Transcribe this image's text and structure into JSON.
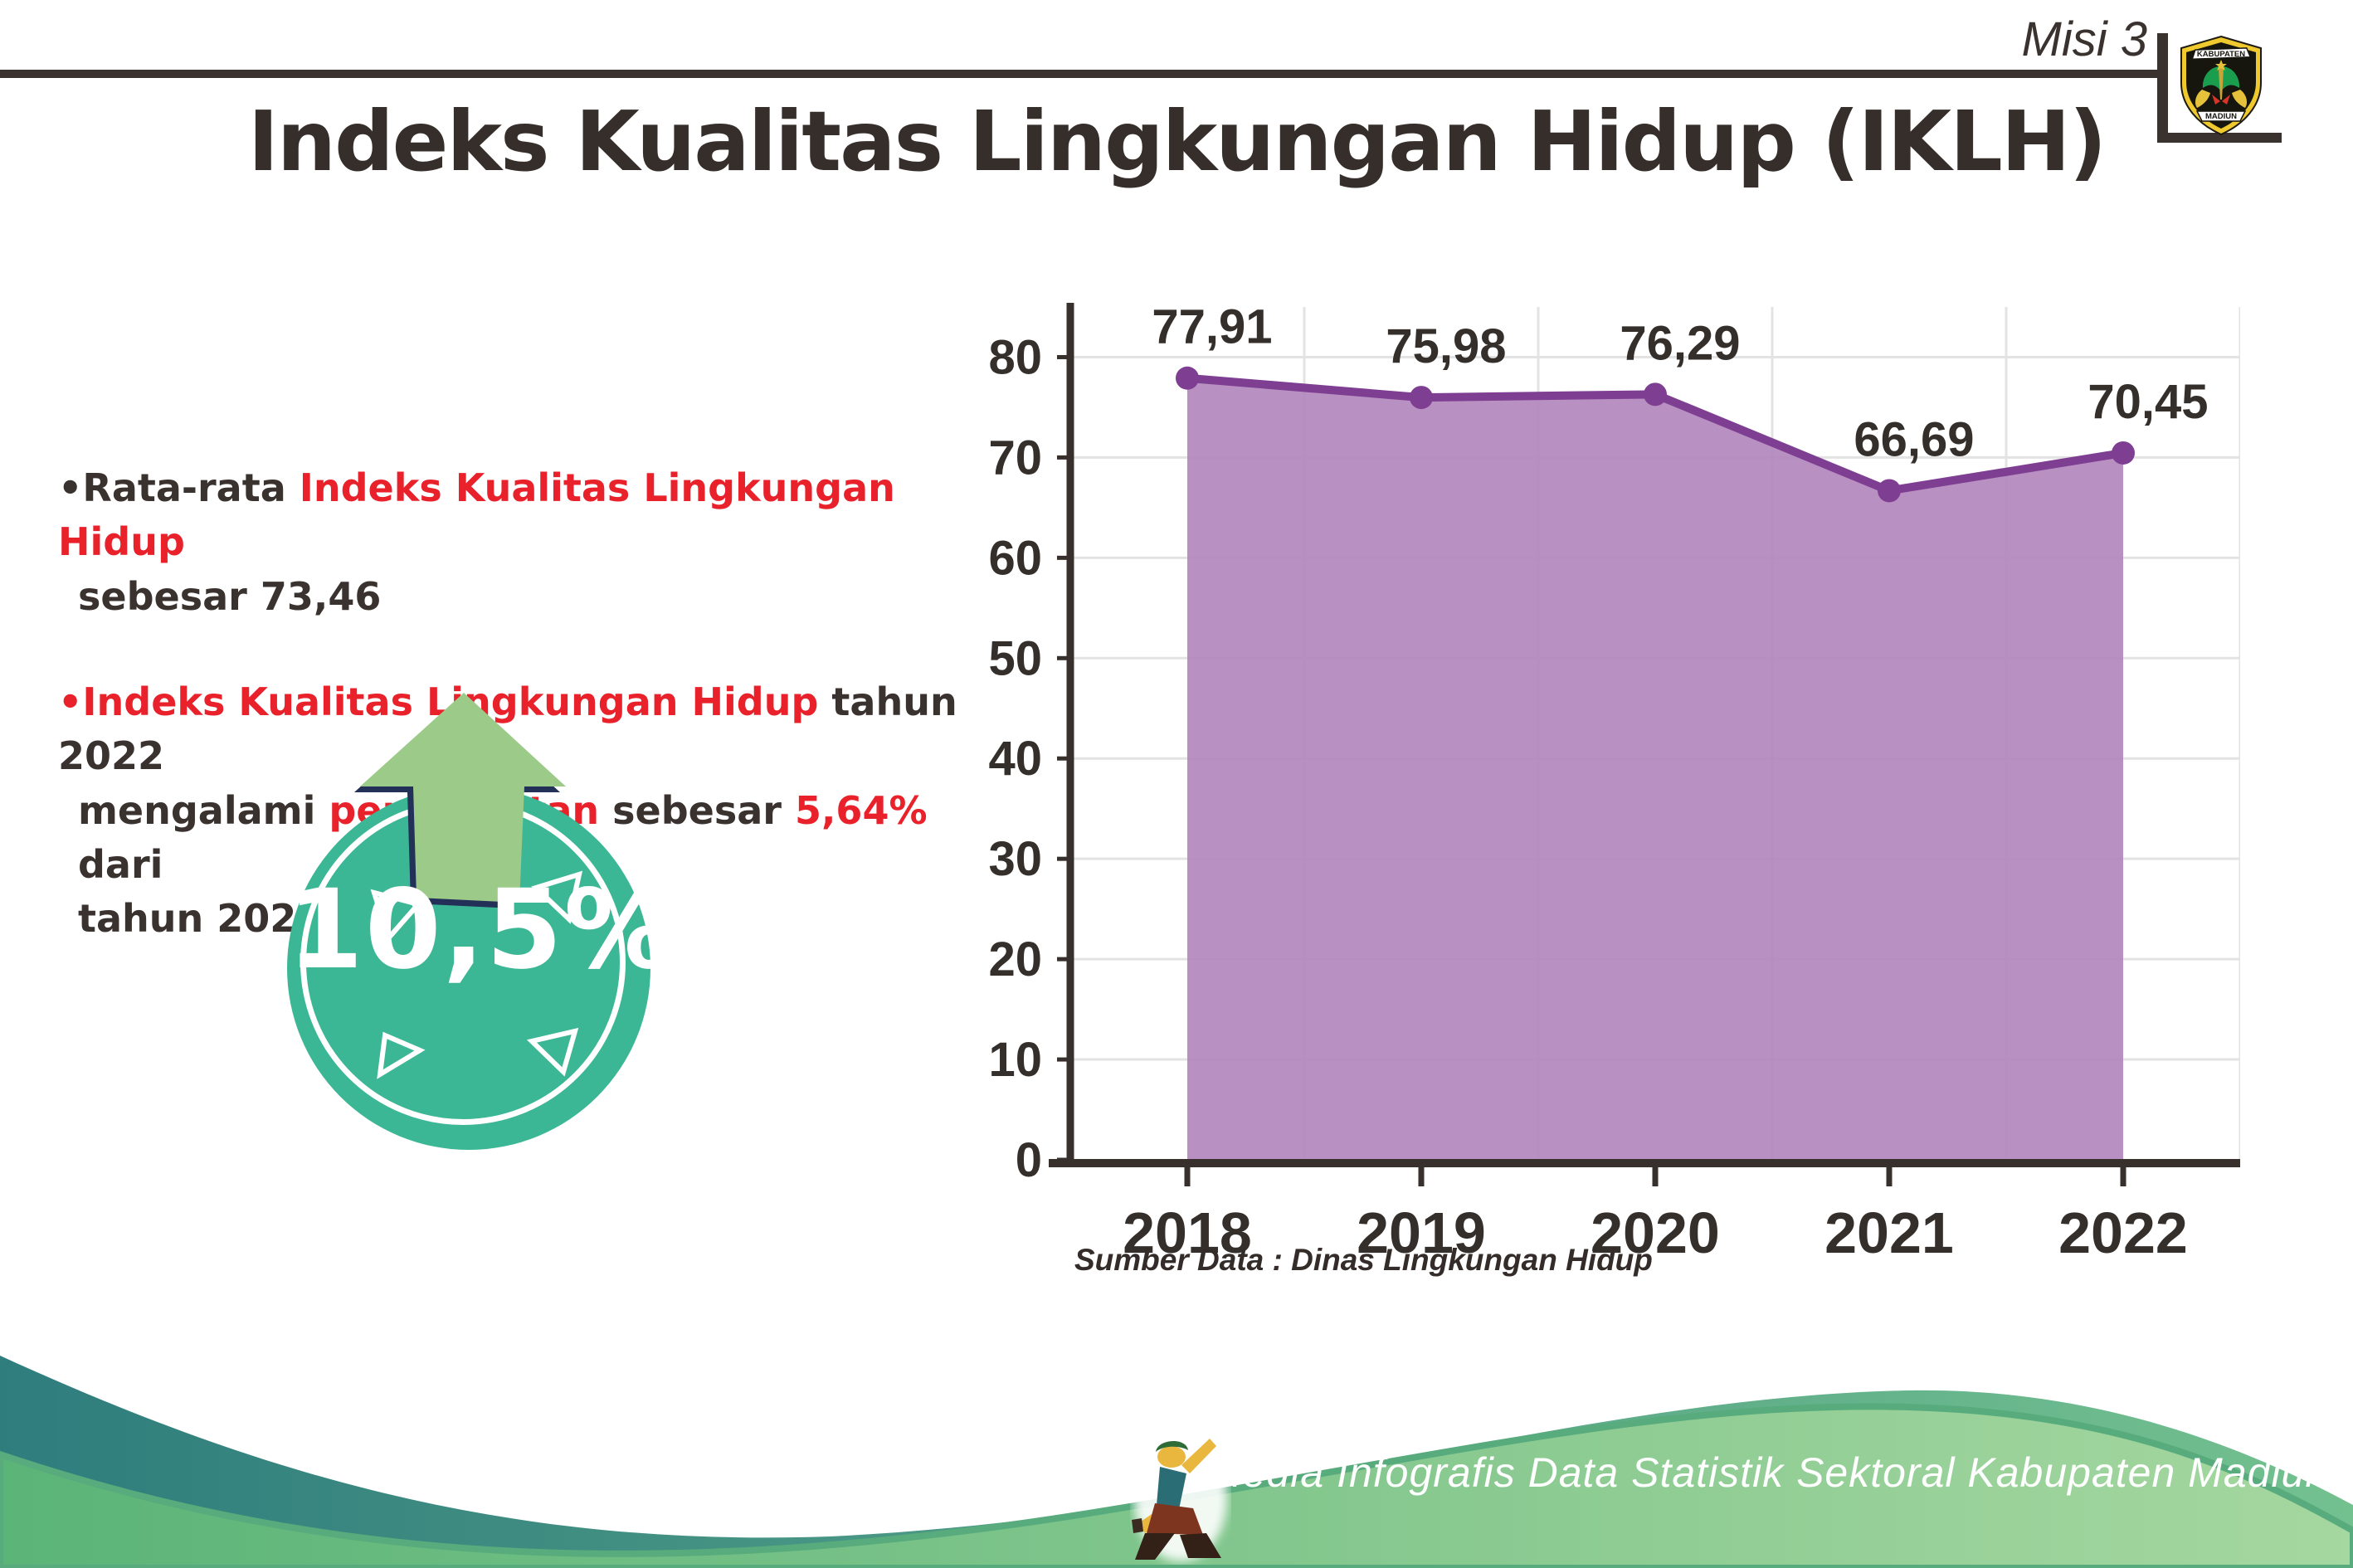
{
  "header": {
    "misi_label": "Misi 3",
    "logo_top_text": "KABUPATEN",
    "logo_bottom_text": "MADIUN"
  },
  "title": "Indeks Kualitas Lingkungan Hidup (IKLH)",
  "bullets": {
    "b1": {
      "l1a": "•Rata-rata ",
      "l1b": "Indeks Kualitas Lingkungan Hidup",
      "l2": "sebesar 73,46"
    },
    "b2": {
      "l1a": "•Indeks Kualitas Lingkungan Hidup",
      "l1b": " tahun 2022",
      "l2a": "mengalami ",
      "l2b": "peningkatan",
      "l2c": " sebesar ",
      "l2d": "5,64%",
      "l2e": " dari",
      "l3": "tahun 2021"
    }
  },
  "badge": {
    "value": "10,5%"
  },
  "chart_data": {
    "type": "area",
    "title": "",
    "categories": [
      "2018",
      "2019",
      "2020",
      "2021",
      "2022"
    ],
    "values": [
      77.91,
      75.98,
      76.29,
      66.69,
      70.45
    ],
    "value_labels": [
      "77,91",
      "75,98",
      "76,29",
      "66,69",
      "70,45"
    ],
    "xlabel": "",
    "ylabel": "",
    "ylim": [
      0,
      85
    ],
    "yticks": [
      0,
      10,
      20,
      30,
      40,
      50,
      60,
      70,
      80
    ],
    "grid": true,
    "legend": "none",
    "line_color": "#7e3e91",
    "fill_color": "#b287bd",
    "axis_color": "#38302c",
    "grid_color": "#e3e3e3",
    "label_color": "#352f2b",
    "source_note": "Sumber Data : Dinas Lingkungan Hidup"
  },
  "footer": {
    "credit": "Media Infografis Data Statistik Sektoral Kabupaten Madiun |"
  }
}
